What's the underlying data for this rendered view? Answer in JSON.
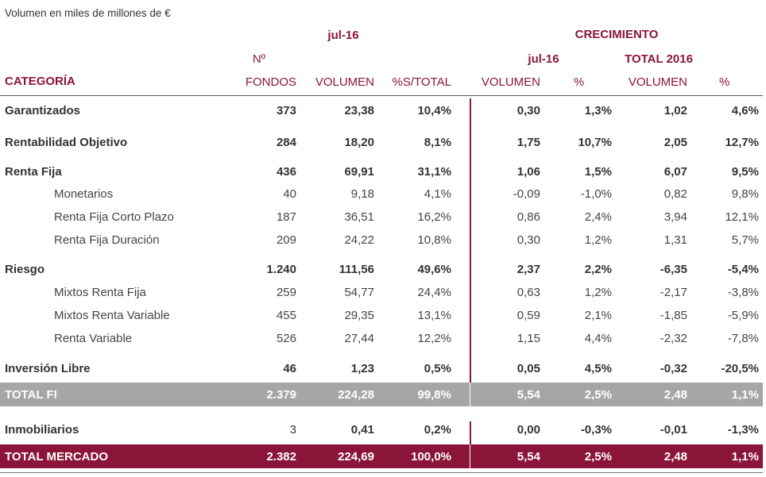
{
  "note": "Volumen en miles de millones de €",
  "header": {
    "period": "jul-16",
    "crecimiento": "CRECIMIENTO",
    "n_label": "Nº",
    "cre_period": "jul-16",
    "total_year": "TOTAL 2016",
    "categoria": "CATEGORÍA",
    "fondos": "FONDOS",
    "volumen": "VOLUMEN",
    "pct_total": "%S/TOTAL",
    "cre_volumen": "VOLUMEN",
    "cre_pct": "%",
    "tot_volumen": "VOLUMEN",
    "tot_pct": "%"
  },
  "colors": {
    "accent": "#8b1538",
    "gray_band": "#a6a6a6"
  },
  "rows": [
    {
      "type": "main",
      "name": "Garantizados",
      "fondos": "373",
      "volumen": "23,38",
      "pct": "10,4%",
      "cv": "0,30",
      "cp": "1,3%",
      "tv": "1,02",
      "tp": "4,6%"
    },
    {
      "type": "main",
      "name": "Rentabilidad Objetivo",
      "fondos": "284",
      "volumen": "18,20",
      "pct": "8,1%",
      "cv": "1,75",
      "cp": "10,7%",
      "tv": "2,05",
      "tp": "12,7%"
    },
    {
      "type": "main",
      "name": "Renta Fija",
      "fondos": "436",
      "volumen": "69,91",
      "pct": "31,1%",
      "cv": "1,06",
      "cp": "1,5%",
      "tv": "6,07",
      "tp": "9,5%"
    },
    {
      "type": "sub",
      "name": "Monetarios",
      "fondos": "40",
      "volumen": "9,18",
      "pct": "4,1%",
      "cv": "-0,09",
      "cp": "-1,0%",
      "tv": "0,82",
      "tp": "9,8%"
    },
    {
      "type": "sub",
      "name": "Renta Fija Corto Plazo",
      "fondos": "187",
      "volumen": "36,51",
      "pct": "16,2%",
      "cv": "0,86",
      "cp": "2,4%",
      "tv": "3,94",
      "tp": "12,1%"
    },
    {
      "type": "sub",
      "name": "Renta Fija Duración",
      "fondos": "209",
      "volumen": "24,22",
      "pct": "10,8%",
      "cv": "0,30",
      "cp": "1,2%",
      "tv": "1,31",
      "tp": "5,7%"
    },
    {
      "type": "main",
      "name": "Riesgo",
      "fondos": "1.240",
      "volumen": "111,56",
      "pct": "49,6%",
      "cv": "2,37",
      "cp": "2,2%",
      "tv": "-6,35",
      "tp": "-5,4%"
    },
    {
      "type": "sub",
      "name": "Mixtos Renta Fija",
      "fondos": "259",
      "volumen": "54,77",
      "pct": "24,4%",
      "cv": "0,63",
      "cp": "1,2%",
      "tv": "-2,17",
      "tp": "-3,8%"
    },
    {
      "type": "sub",
      "name": "Mixtos Renta Variable",
      "fondos": "455",
      "volumen": "29,35",
      "pct": "13,1%",
      "cv": "0,59",
      "cp": "2,1%",
      "tv": "-1,85",
      "tp": "-5,9%"
    },
    {
      "type": "sub",
      "name": "Renta Variable",
      "fondos": "526",
      "volumen": "27,44",
      "pct": "12,2%",
      "cv": "1,15",
      "cp": "4,4%",
      "tv": "-2,32",
      "tp": "-7,8%"
    },
    {
      "type": "main",
      "name": "Inversión Libre",
      "fondos": "46",
      "volumen": "1,23",
      "pct": "0,5%",
      "cv": "0,05",
      "cp": "4,5%",
      "tv": "-0,32",
      "tp": "-20,5%"
    },
    {
      "type": "total-gray",
      "name": "TOTAL FI",
      "fondos": "2.379",
      "volumen": "224,28",
      "pct": "99,8%",
      "cv": "5,54",
      "cp": "2,5%",
      "tv": "2,48",
      "tp": "1,1%"
    },
    {
      "type": "main-mixed",
      "name": "Inmobiliarios",
      "fondos": "3",
      "volumen": "0,41",
      "pct": "0,2%",
      "cv": "0,00",
      "cp": "-0,3%",
      "tv": "-0,01",
      "tp": "-1,3%"
    },
    {
      "type": "total-red",
      "name": "TOTAL MERCADO",
      "fondos": "2.382",
      "volumen": "224,69",
      "pct": "100,0%",
      "cv": "5,54",
      "cp": "2,5%",
      "tv": "2,48",
      "tp": "1,1%"
    }
  ]
}
